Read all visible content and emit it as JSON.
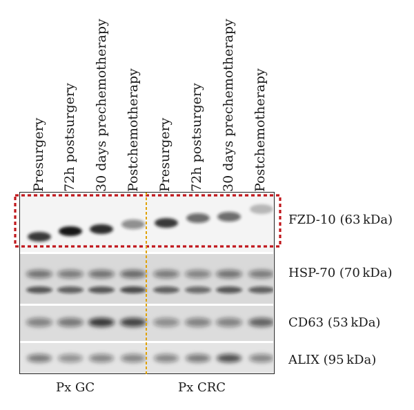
{
  "lanes": [
    {
      "label": "Presurgery",
      "group": "gc"
    },
    {
      "label": "72h postsurgery",
      "group": "gc"
    },
    {
      "label": "30 days prechemotherapy",
      "group": "gc"
    },
    {
      "label": "Postchemotherapy",
      "group": "gc"
    },
    {
      "label": "Presurgery",
      "group": "crc"
    },
    {
      "label": "72h postsurgery",
      "group": "crc"
    },
    {
      "label": "30 days prechemotherapy",
      "group": "crc"
    },
    {
      "label": "Postchemotherapy",
      "group": "crc"
    }
  ],
  "targets": [
    {
      "name": "FZD-10 (63 kDa)",
      "highlighted": true
    },
    {
      "name": "HSP-70 (70 kDa)",
      "highlighted": false
    },
    {
      "name": "CD63 (53 kDa)",
      "highlighted": false
    },
    {
      "name": "ALIX (95 kDa)",
      "highlighted": false
    }
  ],
  "groups": {
    "gc": "Px GC",
    "crc": "Px CRC"
  },
  "band_intensity": {
    "fzd10": [
      0.85,
      1.0,
      0.9,
      0.45,
      0.85,
      0.6,
      0.6,
      0.25
    ],
    "hsp70": [
      0.65,
      0.6,
      0.65,
      0.7,
      0.6,
      0.55,
      0.65,
      0.6
    ],
    "cd63": [
      0.45,
      0.5,
      0.8,
      0.75,
      0.4,
      0.45,
      0.45,
      0.6
    ],
    "alix": [
      0.5,
      0.4,
      0.45,
      0.45,
      0.45,
      0.5,
      0.7,
      0.45
    ]
  },
  "colors": {
    "highlight_box": "#c0171c",
    "divider": "#e0a100",
    "band": "#141414"
  }
}
